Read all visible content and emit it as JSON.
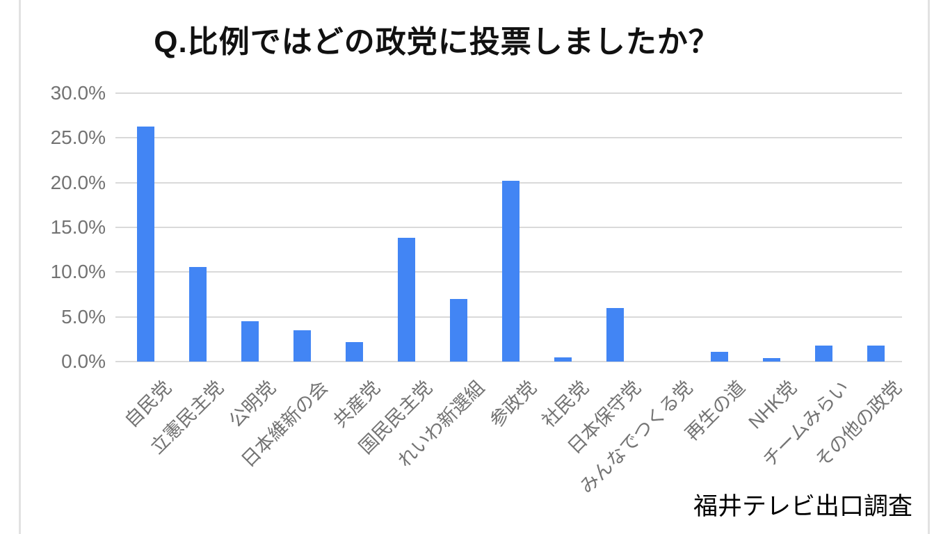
{
  "chart": {
    "title": "Q.比例ではどの政党に投票しましたか？",
    "source": "福井テレビ出口調査"
  },
  "chart_data": {
    "type": "bar",
    "title": "Q.比例ではどの政党に投票しましたか？",
    "categories": [
      "自民党",
      "立憲民主党",
      "公明党",
      "日本維新の会",
      "共産党",
      "国民民主党",
      "れいわ新選組",
      "参政党",
      "社民党",
      "日本保守党",
      "みんなでつくる党",
      "再生の道",
      "NHK党",
      "チームみらい",
      "その他の政党"
    ],
    "values": [
      26.3,
      10.6,
      4.5,
      3.5,
      2.2,
      13.8,
      7.0,
      20.2,
      0.5,
      6.0,
      0.0,
      1.1,
      0.4,
      1.8,
      1.8
    ],
    "unit": "%",
    "xlabel": "",
    "ylabel": "",
    "ylim": [
      0,
      30
    ],
    "y_tick_labels": [
      "30.0%",
      "25.0%",
      "20.0%",
      "15.0%",
      "10.0%",
      "5.0%",
      "0.0%"
    ],
    "y_tick_values": [
      30,
      25,
      20,
      15,
      10,
      5,
      0
    ],
    "grid": true,
    "legend": false,
    "x_label_rotation": -45,
    "bar_color": "#4285f4",
    "gridline_color": "#d9d9d9",
    "axis_label_color": "#737373",
    "source": "福井テレビ出口調査"
  }
}
